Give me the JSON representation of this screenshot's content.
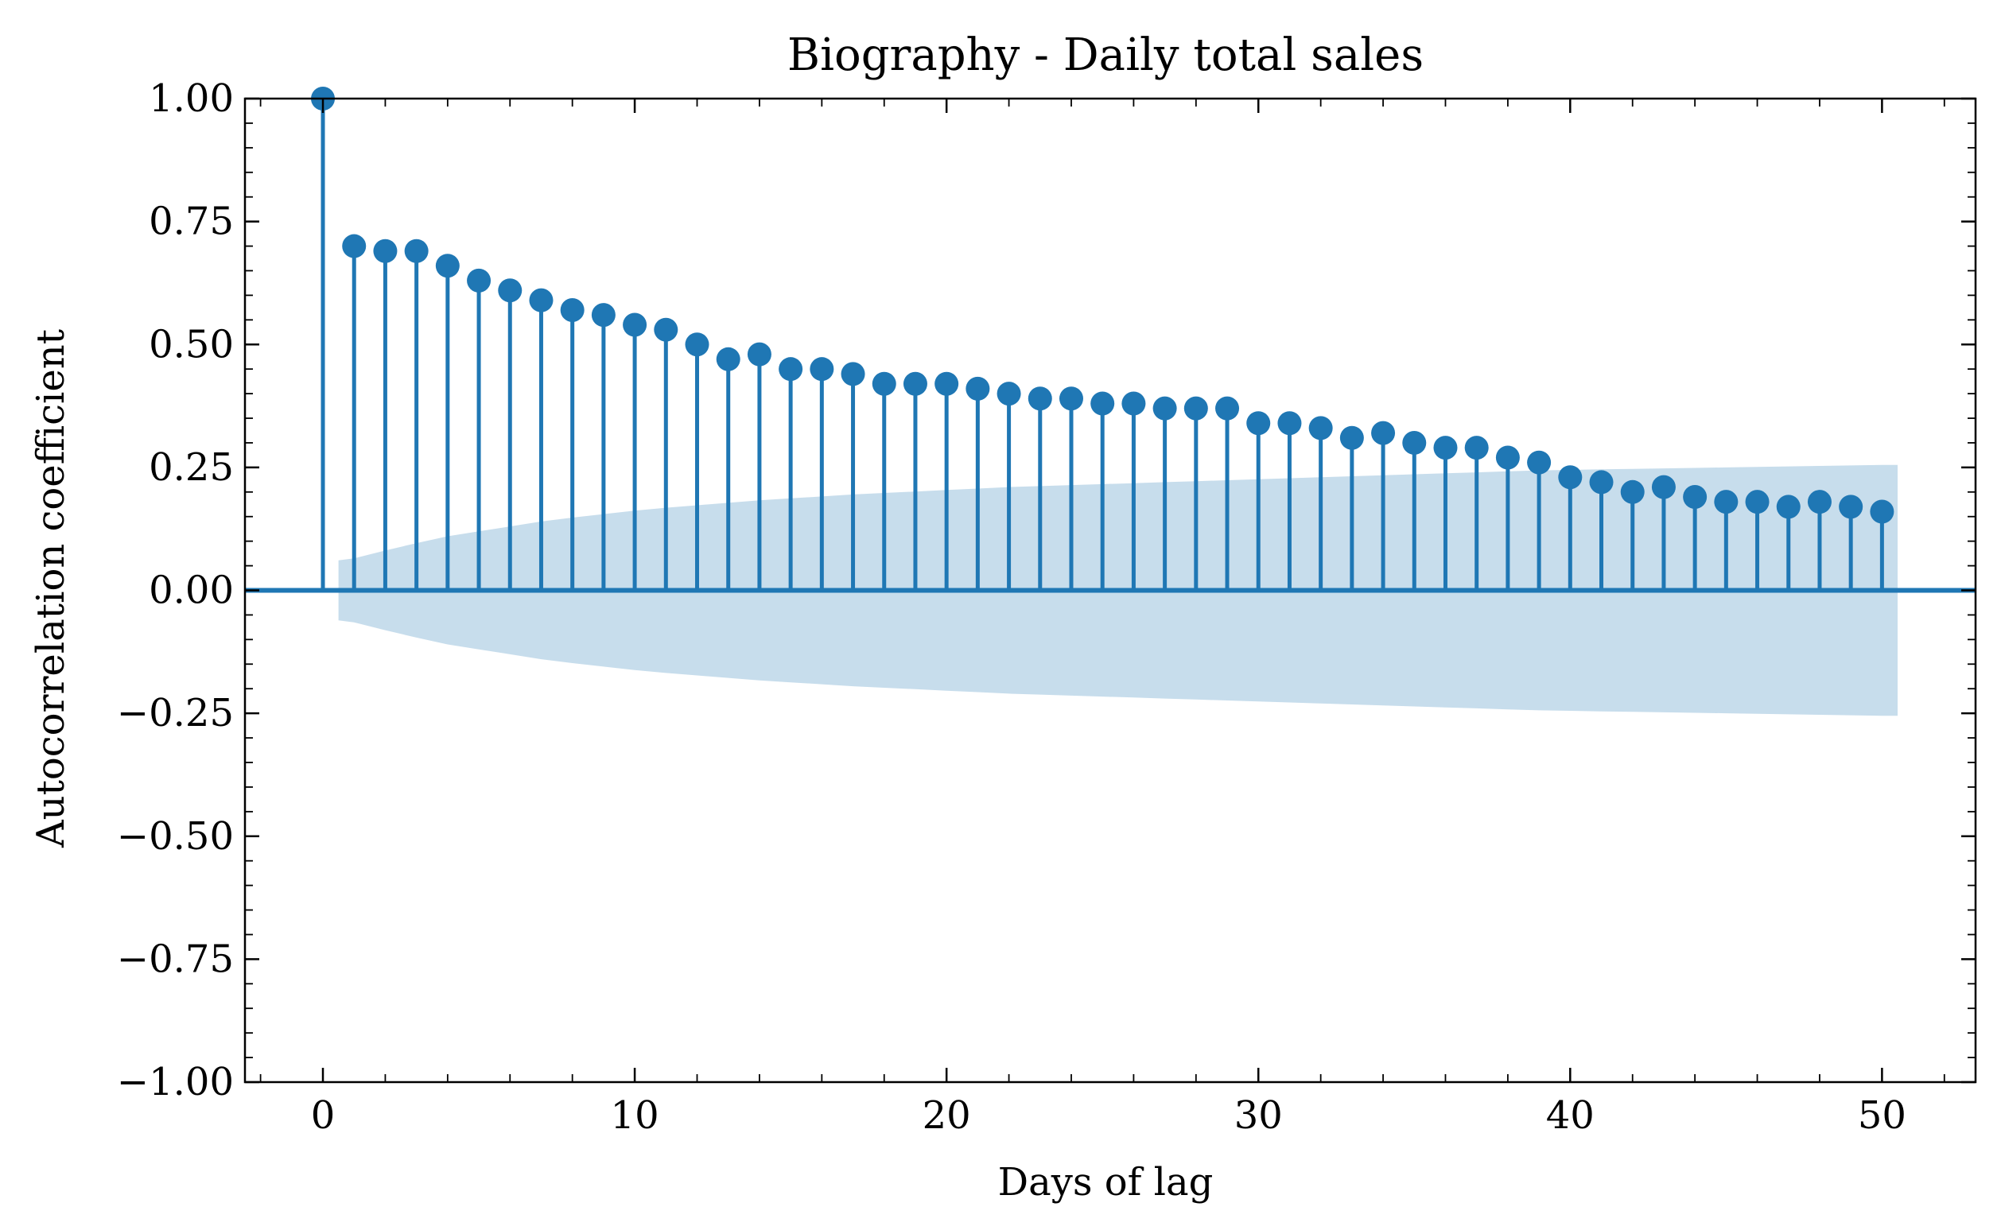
{
  "chart_data": {
    "type": "stem",
    "title": "Biography - Daily total sales",
    "xlabel": "Days of lag",
    "ylabel": "Autocorrelation coefficient",
    "xlim": [
      -2.5,
      53
    ],
    "ylim": [
      -1.0,
      1.0
    ],
    "x_ticks": [
      0,
      10,
      20,
      30,
      40,
      50
    ],
    "x_tick_labels": [
      "0",
      "10",
      "20",
      "30",
      "40",
      "50"
    ],
    "y_ticks": [
      -1.0,
      -0.75,
      -0.5,
      -0.25,
      0.0,
      0.25,
      0.5,
      0.75,
      1.0
    ],
    "y_tick_labels": [
      "−1.00",
      "−0.75",
      "−0.50",
      "−0.25",
      "0.00",
      "0.25",
      "0.50",
      "0.75",
      "1.00"
    ],
    "grid": false,
    "colors": {
      "series": "#1f77b4",
      "band": "#1f77b4",
      "frame": "#000000"
    },
    "lags": [
      0,
      1,
      2,
      3,
      4,
      5,
      6,
      7,
      8,
      9,
      10,
      11,
      12,
      13,
      14,
      15,
      16,
      17,
      18,
      19,
      20,
      21,
      22,
      23,
      24,
      25,
      26,
      27,
      28,
      29,
      30,
      31,
      32,
      33,
      34,
      35,
      36,
      37,
      38,
      39,
      40,
      41,
      42,
      43,
      44,
      45,
      46,
      47,
      48,
      49,
      50
    ],
    "acf": [
      1.0,
      0.7,
      0.69,
      0.69,
      0.66,
      0.63,
      0.61,
      0.59,
      0.57,
      0.56,
      0.54,
      0.53,
      0.5,
      0.47,
      0.48,
      0.45,
      0.45,
      0.44,
      0.42,
      0.42,
      0.42,
      0.41,
      0.4,
      0.39,
      0.39,
      0.38,
      0.38,
      0.37,
      0.37,
      0.37,
      0.34,
      0.34,
      0.33,
      0.31,
      0.32,
      0.3,
      0.29,
      0.29,
      0.27,
      0.26,
      0.23,
      0.22,
      0.2,
      0.21,
      0.19,
      0.18,
      0.18,
      0.17,
      0.18,
      0.17,
      0.16
    ],
    "confidence_band": {
      "x": [
        0.5,
        1,
        2,
        3,
        4,
        5,
        6,
        7,
        8,
        9,
        10,
        11,
        12,
        13,
        14,
        15,
        16,
        17,
        18,
        19,
        20,
        21,
        22,
        23,
        24,
        25,
        26,
        27,
        28,
        29,
        30,
        31,
        32,
        33,
        34,
        35,
        36,
        37,
        38,
        39,
        40,
        41,
        42,
        43,
        44,
        45,
        46,
        47,
        48,
        49,
        50,
        50.5
      ],
      "upper": [
        0.061,
        0.065,
        0.081,
        0.096,
        0.11,
        0.12,
        0.13,
        0.14,
        0.148,
        0.155,
        0.162,
        0.168,
        0.173,
        0.178,
        0.183,
        0.187,
        0.191,
        0.195,
        0.198,
        0.201,
        0.204,
        0.207,
        0.21,
        0.212,
        0.214,
        0.216,
        0.218,
        0.22,
        0.222,
        0.224,
        0.226,
        0.228,
        0.23,
        0.232,
        0.234,
        0.236,
        0.238,
        0.24,
        0.242,
        0.244,
        0.245,
        0.246,
        0.247,
        0.248,
        0.249,
        0.25,
        0.251,
        0.252,
        0.253,
        0.254,
        0.255,
        0.255
      ]
    }
  }
}
